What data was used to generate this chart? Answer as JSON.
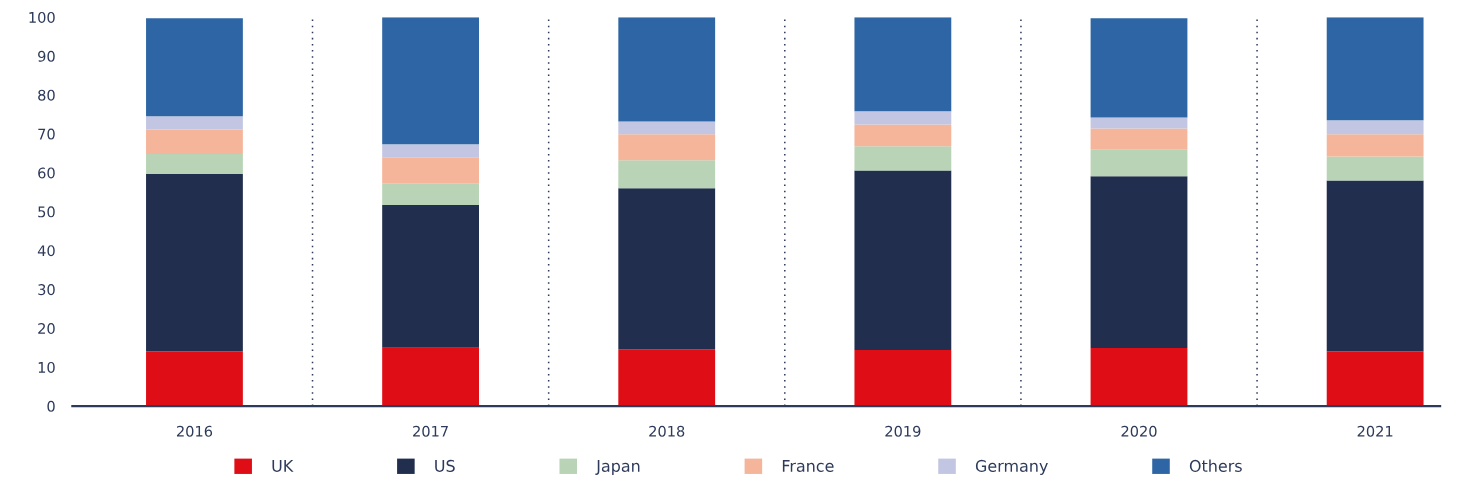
{
  "chart_data": {
    "type": "bar",
    "stacked": true,
    "categories": [
      "2016",
      "2017",
      "2018",
      "2019",
      "2020",
      "2021"
    ],
    "series": [
      {
        "name": "UK",
        "color": "#de0d16",
        "values": [
          14.0,
          15.0,
          14.6,
          14.4,
          14.9,
          14.0
        ]
      },
      {
        "name": "US",
        "color": "#212e4d",
        "values": [
          45.7,
          36.7,
          41.4,
          46.2,
          44.2,
          44.0
        ]
      },
      {
        "name": "Japan",
        "color": "#b8d3b5",
        "values": [
          5.1,
          5.6,
          7.2,
          6.2,
          6.8,
          6.2
        ]
      },
      {
        "name": "France",
        "color": "#f5b59a",
        "values": [
          6.3,
          6.7,
          6.7,
          5.6,
          5.5,
          5.7
        ]
      },
      {
        "name": "Germany",
        "color": "#c2c6e2",
        "values": [
          3.4,
          3.3,
          3.3,
          3.4,
          2.8,
          3.6
        ]
      },
      {
        "name": "Others",
        "color": "#2e66a5",
        "values": [
          25.2,
          32.7,
          26.8,
          24.2,
          25.5,
          26.5
        ]
      }
    ],
    "ylim": [
      0,
      100
    ],
    "yticks": [
      0,
      10,
      20,
      30,
      40,
      50,
      60,
      70,
      80,
      90,
      100
    ],
    "grid": "x",
    "legend": "bottom"
  }
}
